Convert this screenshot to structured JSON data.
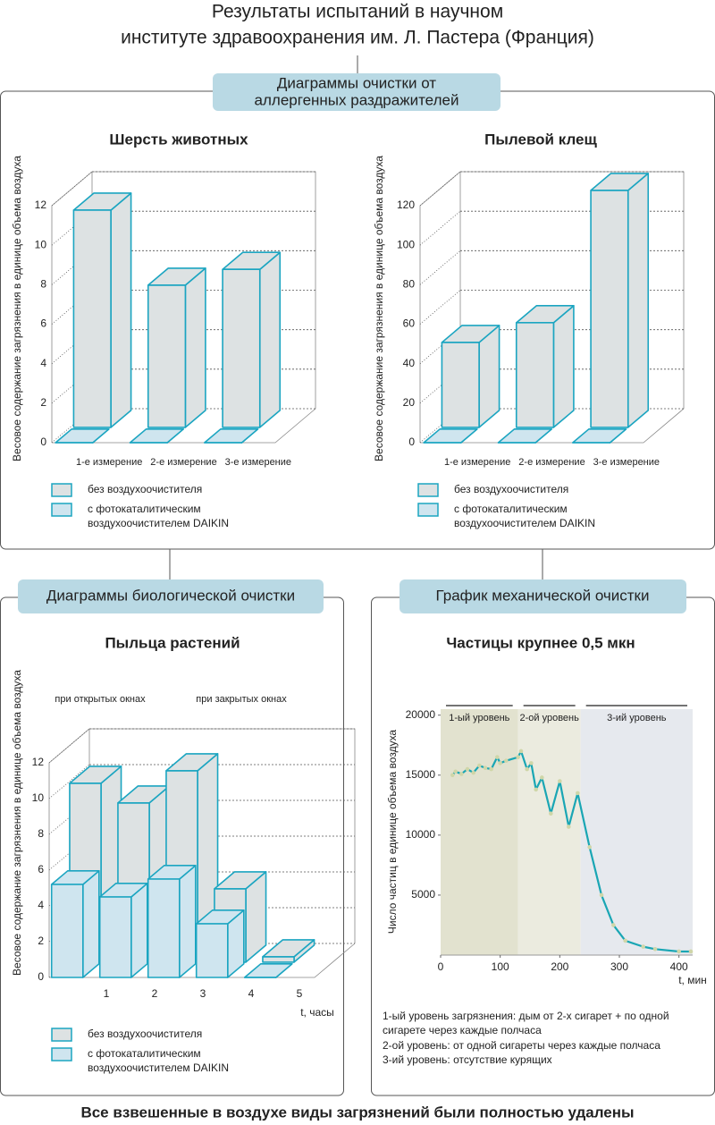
{
  "title": [
    "Результаты испытаний в научном",
    "институте здравоохранения им. Л. Пастера (Франция)"
  ],
  "sections": [
    {
      "title": [
        "Диаграммы очистки от",
        "аллергенных раздражителей"
      ]
    },
    {
      "title": [
        "Диаграммы биологической очистки"
      ]
    },
    {
      "title": [
        "График механической очистки"
      ]
    }
  ],
  "footer": "Все взвешенные в воздухе виды загрязнений были полностью удалены",
  "chart_data": [
    {
      "type": "bar3d",
      "title": "Шерсть животных",
      "ylabel": "Весовое содержание загрязнения в единице объема воздуха",
      "categories": [
        "1-е измерение",
        "2-е измерение",
        "3-е измерение"
      ],
      "series": [
        {
          "name": "без воздухоочистителя",
          "color": "#dde2e3",
          "values": [
            11,
            7.2,
            8
          ]
        },
        {
          "name": "с фотокаталитическим\nвоздухоочистителем DAIKIN",
          "color": "#cfe5ef",
          "values": [
            0,
            0,
            0
          ]
        }
      ],
      "ylim": [
        0,
        12
      ],
      "yticks": [
        0,
        2,
        4,
        6,
        8,
        10,
        12
      ]
    },
    {
      "type": "bar3d",
      "title": "Пылевой клещ",
      "ylabel": "Весовое содержание загрязнения в единице объема воздуха",
      "categories": [
        "1-е измерение",
        "2-е измерение",
        "3-е измерение"
      ],
      "series": [
        {
          "name": "без воздухоочистителя",
          "color": "#dde2e3",
          "values": [
            43,
            53,
            120
          ]
        },
        {
          "name": "с фотокаталитическим\nвоздухоочистителем DAIKIN",
          "color": "#cfe5ef",
          "values": [
            0,
            0,
            0
          ]
        }
      ],
      "ylim": [
        0,
        120
      ],
      "yticks": [
        0,
        20,
        40,
        60,
        80,
        100,
        120
      ]
    },
    {
      "type": "bar3d",
      "title": "Пыльца растений",
      "ylabel": "Весовое содержание загрязнения в единице объема воздуха",
      "xlabel": "t, часы",
      "annotations": [
        "при открытых окнах",
        "при закрытых окнах"
      ],
      "x": [
        1,
        2,
        3,
        4,
        5
      ],
      "series": [
        {
          "name": "без воздухоочистителя",
          "color": "#dde2e3",
          "values": [
            10,
            8.9,
            10.7,
            4.1,
            0.3
          ]
        },
        {
          "name": "с фотокаталитическим\nвоздухоочистителем DAIKIN",
          "color": "#cfe5ef",
          "values": [
            5.2,
            4.5,
            5.5,
            3,
            0
          ]
        }
      ],
      "xlim": [
        0,
        5.5
      ],
      "xticks": [
        1,
        2,
        3,
        4,
        5
      ],
      "ylim": [
        0,
        12
      ],
      "yticks": [
        0,
        2,
        4,
        6,
        8,
        10,
        12
      ]
    },
    {
      "type": "line",
      "title": "Частицы крупнее 0,5 мкн",
      "ylabel": "Число частиц в единице объема воздуха",
      "xlabel": "t, мин",
      "bands": [
        {
          "label": "1-ый уровень",
          "start": 0,
          "end": 130,
          "color": "#e2e2cf"
        },
        {
          "label": "2-ой уровень",
          "start": 130,
          "end": 235,
          "color": "#ebebdf"
        },
        {
          "label": "3-ий уровень",
          "start": 235,
          "end": 423,
          "color": "#e6e9ee"
        }
      ],
      "x": [
        20,
        25,
        35,
        45,
        55,
        65,
        75,
        85,
        95,
        100,
        110,
        130,
        135,
        145,
        152,
        160,
        170,
        185,
        200,
        215,
        230,
        250,
        270,
        290,
        310,
        340,
        360,
        400,
        420
      ],
      "series": [
        {
          "color": "#1aa6b4",
          "values": [
            15000,
            15300,
            15100,
            15500,
            15200,
            15800,
            15600,
            15500,
            16500,
            16000,
            16200,
            16500,
            17000,
            15500,
            16000,
            13800,
            14800,
            11800,
            14500,
            10700,
            13500,
            9000,
            5000,
            2500,
            1200,
            700,
            500,
            300,
            300
          ]
        }
      ],
      "xlim": [
        0,
        423
      ],
      "xticks": [
        0,
        100,
        200,
        300,
        400
      ],
      "ylim": [
        0,
        20500
      ],
      "yticks": [
        5000,
        10000,
        15000,
        20000
      ],
      "notes": [
        "1-ый уровень загрязнения: дым от 2-х сигарет + по одной\nсигарете через каждые полчаса",
        "2-ой уровень: от одной сигареты через каждые полчаса",
        "3-ий уровень: отсутствие курящих"
      ]
    }
  ]
}
